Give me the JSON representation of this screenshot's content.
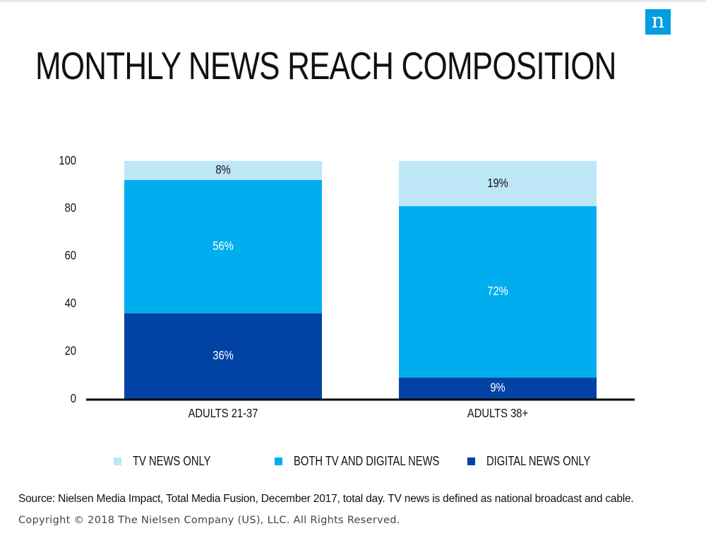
{
  "logo": {
    "letter": "n"
  },
  "title": "MONTHLY NEWS REACH COMPOSITION",
  "colors": {
    "tv_only": "#bde6f7",
    "both": "#00aeef",
    "digital_only": "#0043a4",
    "logo": "#009de0"
  },
  "legend": {
    "tv_only": "TV NEWS ONLY",
    "both": "BOTH TV AND DIGITAL NEWS",
    "digital_only": "DIGITAL NEWS ONLY"
  },
  "chart_data": {
    "type": "bar",
    "stacked": true,
    "categories": [
      "ADULTS 21-37",
      "ADULTS 38+"
    ],
    "series": [
      {
        "name": "DIGITAL NEWS ONLY",
        "values": [
          36,
          9
        ],
        "labels": [
          "36%",
          "9%"
        ],
        "color": "#0043a4",
        "label_color": "#ffffff"
      },
      {
        "name": "BOTH TV AND DIGITAL NEWS",
        "values": [
          56,
          72
        ],
        "labels": [
          "56%",
          "72%"
        ],
        "color": "#00aeef",
        "label_color": "#ffffff"
      },
      {
        "name": "TV NEWS ONLY",
        "values": [
          8,
          19
        ],
        "labels": [
          "8%",
          "19%"
        ],
        "color": "#bde6f7",
        "label_color": "#111111"
      }
    ],
    "yticks": [
      0,
      20,
      40,
      60,
      80,
      100
    ],
    "ylim": [
      0,
      100
    ],
    "grid": false,
    "legend_position": "bottom"
  },
  "footer": {
    "source": "Source: Nielsen Media Impact, Total Media Fusion, December 2017, total day. TV news is defined as national broadcast and cable.",
    "copyright": "Copyright © 2018 The Nielsen Company (US), LLC. All Rights Reserved."
  }
}
